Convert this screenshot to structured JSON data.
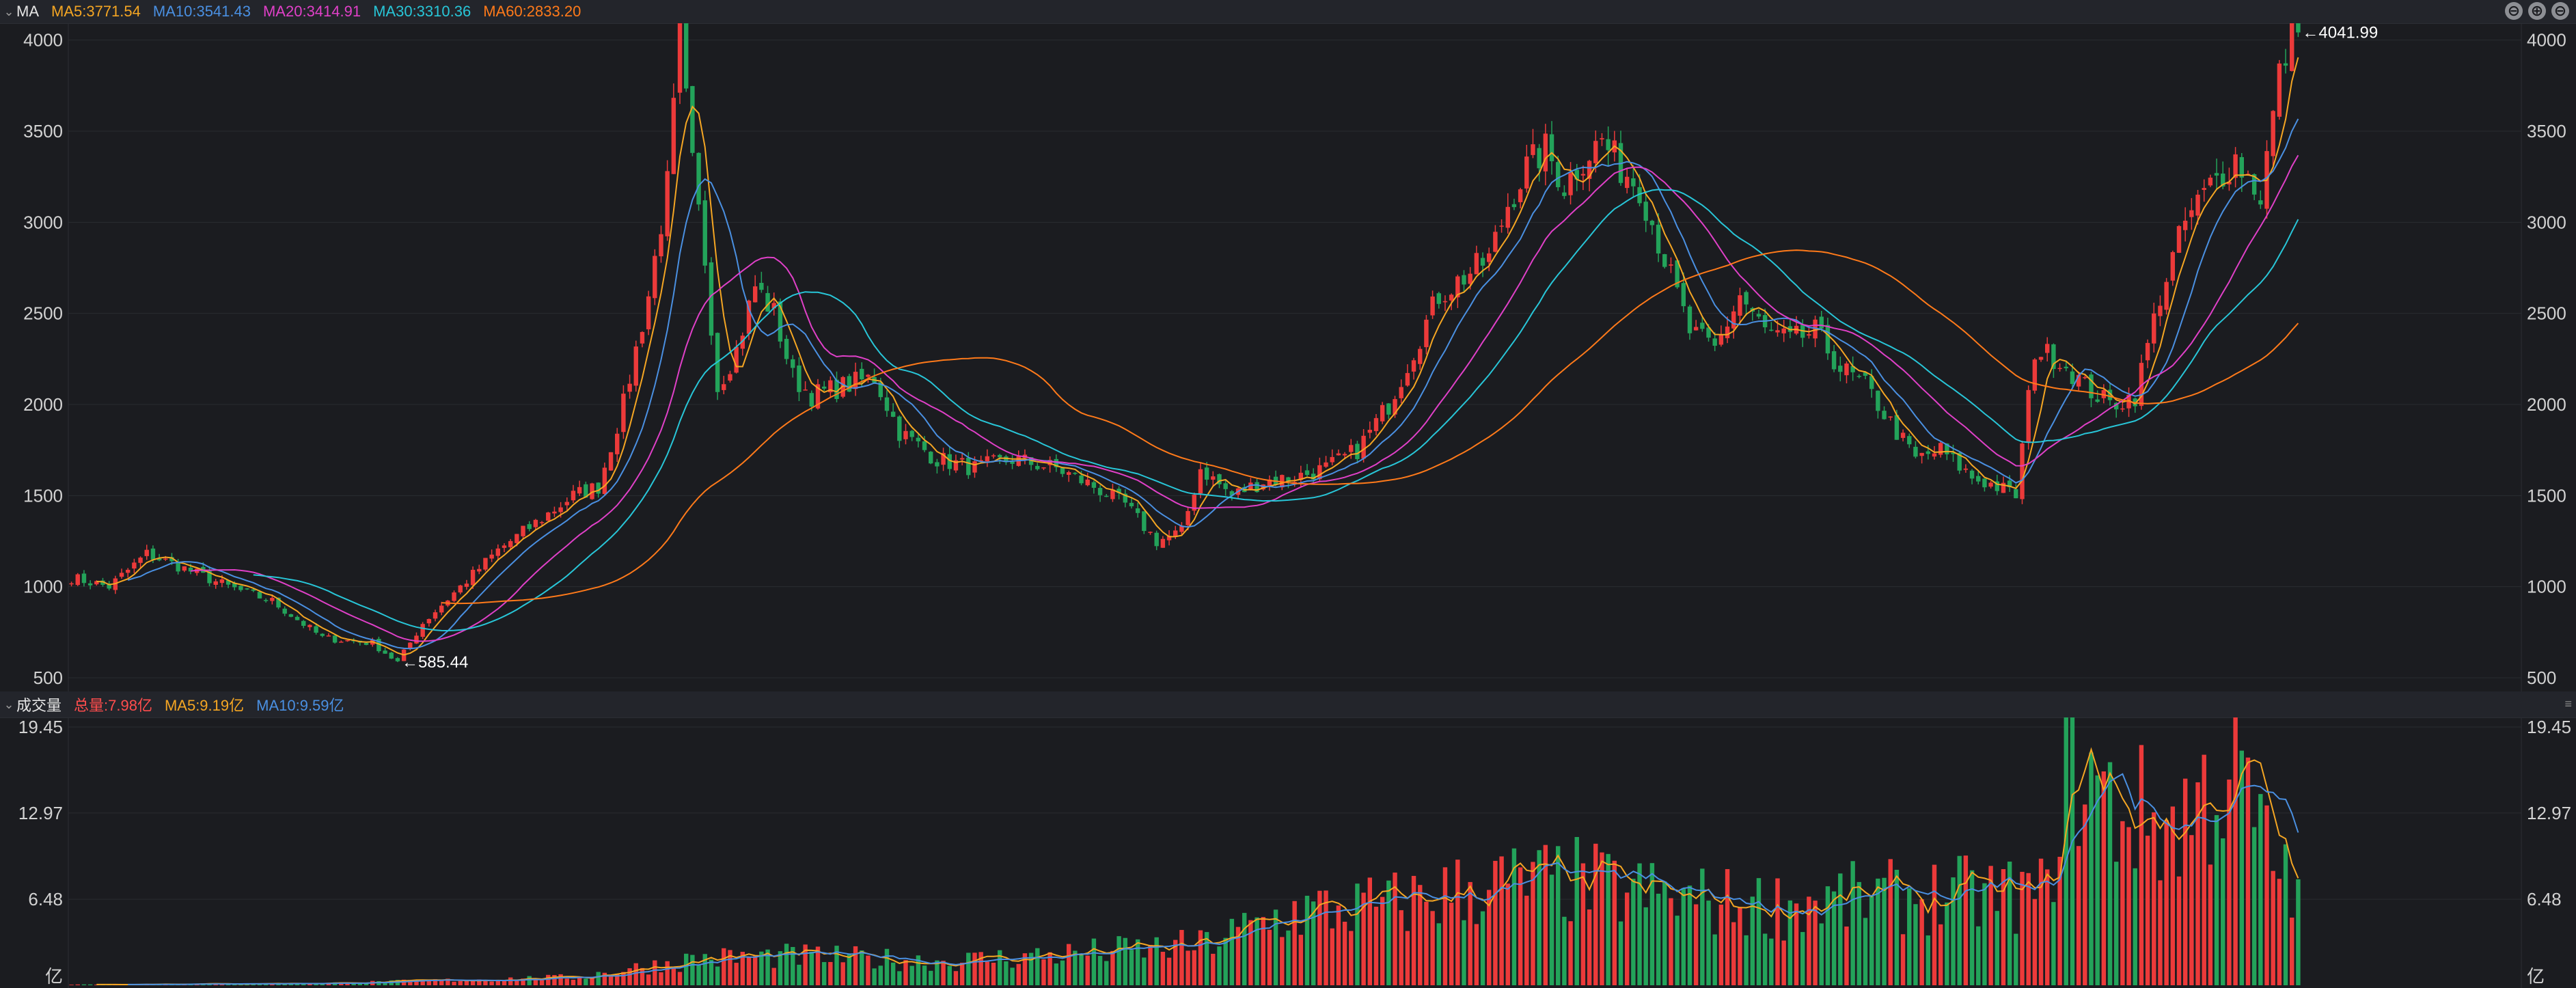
{
  "price_panel": {
    "indicator": "MA",
    "legend": [
      {
        "label": "MA5:3771.54",
        "color": "#f5a623"
      },
      {
        "label": "MA10:3541.43",
        "color": "#4a90e2"
      },
      {
        "label": "MA20:3414.91",
        "color": "#e040c8"
      },
      {
        "label": "MA30:3310.36",
        "color": "#28c6d8"
      },
      {
        "label": "MA60:2833.20",
        "color": "#ff7a1a"
      }
    ],
    "controls": [
      "⊖",
      "⊕",
      "⊖"
    ],
    "high_annotation": "←4041.99",
    "low_annotation": "←585.44"
  },
  "volume_panel": {
    "indicator": "成交量",
    "legend": [
      {
        "label": "总量:7.98亿",
        "color": "#ff4d4d"
      },
      {
        "label": "MA5:9.19亿",
        "color": "#f5a623"
      },
      {
        "label": "MA10:9.59亿",
        "color": "#4a90e2"
      }
    ],
    "side_icon": "≡",
    "unit": "亿"
  },
  "colors": {
    "up": "#ec3a3a",
    "down": "#23a35a",
    "grid": "#2a2c31",
    "bg": "#1b1c20"
  },
  "chart_data": [
    {
      "type": "candlestick",
      "title": "",
      "y_ticks": [
        500,
        1000,
        1500,
        2000,
        2500,
        3000,
        3500,
        4000
      ],
      "ylim": [
        500,
        4100
      ],
      "grid": true,
      "close_path": [
        [
          0,
          1050
        ],
        [
          6,
          1000
        ],
        [
          12,
          1180
        ],
        [
          18,
          1100
        ],
        [
          25,
          1000
        ],
        [
          32,
          920
        ],
        [
          40,
          720
        ],
        [
          45,
          700
        ],
        [
          48,
          690
        ],
        [
          52,
          585
        ],
        [
          56,
          800
        ],
        [
          62,
          1000
        ],
        [
          68,
          1200
        ],
        [
          72,
          1300
        ],
        [
          76,
          1400
        ],
        [
          80,
          1500
        ],
        [
          84,
          1550
        ],
        [
          88,
          2000
        ],
        [
          92,
          2600
        ],
        [
          95,
          3200
        ],
        [
          97,
          4000
        ],
        [
          99,
          3300
        ],
        [
          101,
          2800
        ],
        [
          103,
          2100
        ],
        [
          106,
          2300
        ],
        [
          109,
          2650
        ],
        [
          112,
          2500
        ],
        [
          115,
          2150
        ],
        [
          118,
          2050
        ],
        [
          123,
          2100
        ],
        [
          128,
          2150
        ],
        [
          132,
          1850
        ],
        [
          138,
          1700
        ],
        [
          144,
          1650
        ],
        [
          150,
          1700
        ],
        [
          157,
          1650
        ],
        [
          163,
          1550
        ],
        [
          168,
          1450
        ],
        [
          173,
          1250
        ],
        [
          177,
          1300
        ],
        [
          180,
          1650
        ],
        [
          185,
          1500
        ],
        [
          190,
          1580
        ],
        [
          195,
          1600
        ],
        [
          200,
          1650
        ],
        [
          205,
          1750
        ],
        [
          210,
          2000
        ],
        [
          214,
          2300
        ],
        [
          218,
          2600
        ],
        [
          222,
          2700
        ],
        [
          226,
          2800
        ],
        [
          229,
          3100
        ],
        [
          232,
          3300
        ],
        [
          235,
          3400
        ],
        [
          238,
          3200
        ],
        [
          241,
          3350
        ],
        [
          244,
          3450
        ],
        [
          247,
          3300
        ],
        [
          250,
          3200
        ],
        [
          254,
          2800
        ],
        [
          258,
          2400
        ],
        [
          262,
          2300
        ],
        [
          266,
          2600
        ],
        [
          270,
          2400
        ],
        [
          274,
          2350
        ],
        [
          278,
          2400
        ],
        [
          282,
          2200
        ],
        [
          286,
          2100
        ],
        [
          290,
          1900
        ],
        [
          294,
          1700
        ],
        [
          298,
          1750
        ],
        [
          303,
          1600
        ],
        [
          307,
          1550
        ],
        [
          310,
          1500
        ],
        [
          313,
          2300
        ],
        [
          317,
          2250
        ],
        [
          321,
          2100
        ],
        [
          325,
          2000
        ],
        [
          329,
          2050
        ],
        [
          333,
          2600
        ],
        [
          337,
          3000
        ],
        [
          341,
          3200
        ],
        [
          345,
          3350
        ],
        [
          349,
          3150
        ],
        [
          352,
          3800
        ],
        [
          354,
          4042
        ]
      ],
      "series": [
        {
          "name": "MA5",
          "values_final": 3771.54
        },
        {
          "name": "MA10",
          "values_final": 3541.43
        },
        {
          "name": "MA20",
          "values_final": 3414.91
        },
        {
          "name": "MA30",
          "values_final": 3310.36
        },
        {
          "name": "MA60",
          "values_final": 2833.2
        }
      ],
      "annotations": [
        {
          "text": "4041.99",
          "y": 4041.99
        },
        {
          "text": "585.44",
          "y": 585.44
        }
      ]
    },
    {
      "type": "bar",
      "title": "",
      "y_ticks": [
        6.48,
        12.97,
        19.45
      ],
      "y_unit": "亿",
      "ylim": [
        0,
        19.45
      ],
      "volume_path": [
        [
          0,
          0.05
        ],
        [
          40,
          0.15
        ],
        [
          80,
          0.6
        ],
        [
          100,
          2.0
        ],
        [
          115,
          2.2
        ],
        [
          140,
          1.8
        ],
        [
          160,
          2.4
        ],
        [
          180,
          3.0
        ],
        [
          195,
          5.5
        ],
        [
          210,
          6.0
        ],
        [
          225,
          7.5
        ],
        [
          240,
          7.8
        ],
        [
          255,
          6.5
        ],
        [
          270,
          6.0
        ],
        [
          285,
          6.5
        ],
        [
          300,
          6.8
        ],
        [
          315,
          6.8
        ],
        [
          318,
          18.0
        ],
        [
          325,
          13.5
        ],
        [
          335,
          12.0
        ],
        [
          345,
          16.5
        ],
        [
          350,
          10.0
        ],
        [
          354,
          8.0
        ]
      ],
      "series": [
        {
          "name": "MA5",
          "values_final": 9.19
        },
        {
          "name": "MA10",
          "values_final": 9.59
        }
      ],
      "last_total": 7.98
    }
  ]
}
